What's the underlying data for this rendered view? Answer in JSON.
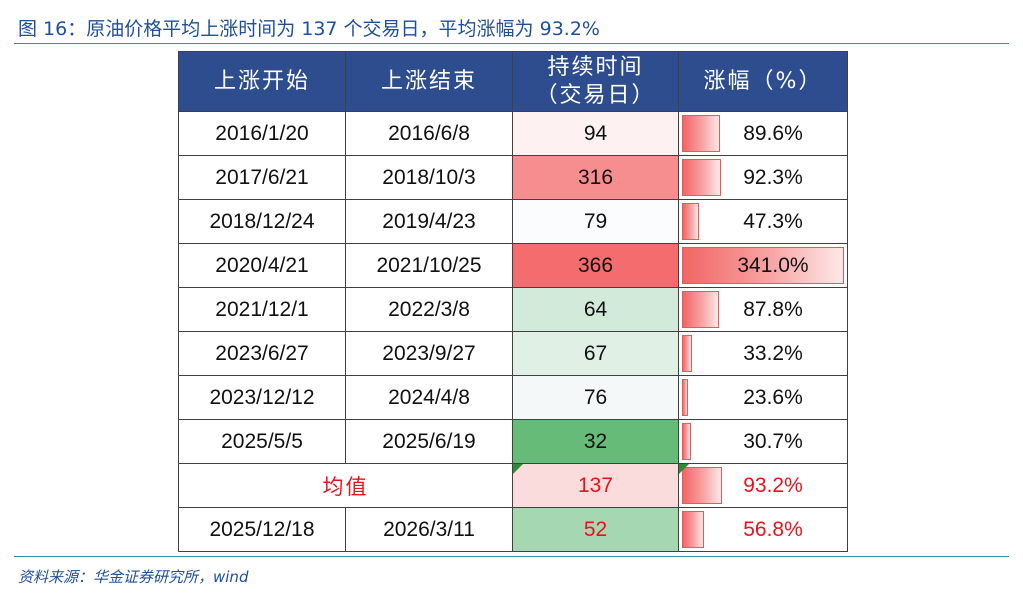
{
  "title": "图 16：原油价格平均上涨时间为 137 个交易日，平均涨幅为 93.2%",
  "source": "资料来源：华金证券研究所，wind",
  "headers": {
    "start": "上涨开始",
    "end": "上涨结束",
    "duration_line1": "持续时间",
    "duration_line2": "（交易日）",
    "rise": "涨幅（%）"
  },
  "rows": [
    {
      "start": "2016/1/20",
      "end": "2016/6/8",
      "duration": "94",
      "rise": "89.6%",
      "rise_value": 89.6,
      "dur_color": "#fdf1f2"
    },
    {
      "start": "2017/6/21",
      "end": "2018/10/3",
      "duration": "316",
      "rise": "92.3%",
      "rise_value": 92.3,
      "dur_color": "#f68d8f"
    },
    {
      "start": "2018/12/24",
      "end": "2019/4/23",
      "duration": "79",
      "rise": "47.3%",
      "rise_value": 47.3,
      "dur_color": "#fbfcfd"
    },
    {
      "start": "2020/4/21",
      "end": "2021/10/25",
      "duration": "366",
      "rise": "341.0%",
      "rise_value": 341.0,
      "dur_color": "#f46c6e"
    },
    {
      "start": "2021/12/1",
      "end": "2022/3/8",
      "duration": "64",
      "rise": "87.8%",
      "rise_value": 87.8,
      "dur_color": "#d2ead9"
    },
    {
      "start": "2023/6/27",
      "end": "2023/9/27",
      "duration": "67",
      "rise": "33.2%",
      "rise_value": 33.2,
      "dur_color": "#e0f0e4"
    },
    {
      "start": "2023/12/12",
      "end": "2024/4/8",
      "duration": "76",
      "rise": "23.6%",
      "rise_value": 23.6,
      "dur_color": "#f4f8f8"
    },
    {
      "start": "2025/5/5",
      "end": "2025/6/19",
      "duration": "32",
      "rise": "30.7%",
      "rise_value": 30.7,
      "dur_color": "#66bb79"
    }
  ],
  "average": {
    "label": "均值",
    "duration": "137",
    "rise": "93.2%",
    "rise_value": 93.2,
    "dur_color": "#fbdcdd"
  },
  "latest": {
    "start": "2025/12/18",
    "end": "2026/3/11",
    "duration": "52",
    "rise": "56.8%",
    "rise_value": 56.8,
    "dur_color": "#a6d7b3"
  },
  "rise_scale_max": 341.0
}
